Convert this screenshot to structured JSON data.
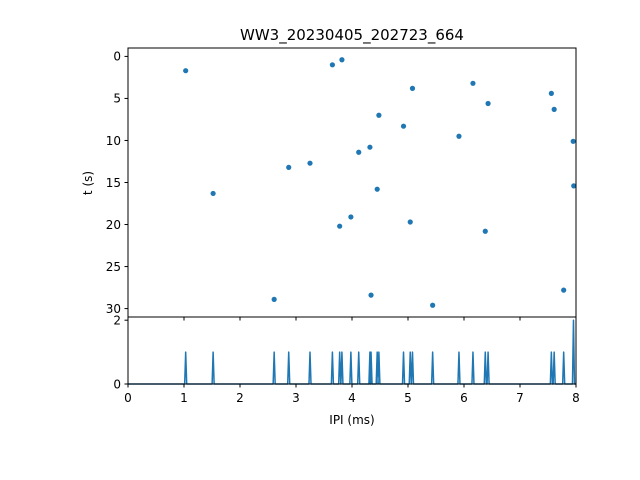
{
  "chart_data": [
    {
      "type": "scatter",
      "title": "WW3_20230405_202723_664",
      "xlabel": "",
      "ylabel": "t (s)",
      "xlim": [
        0,
        8
      ],
      "ylim": [
        31,
        -1
      ],
      "y_inverted": true,
      "yticks": [
        0,
        5,
        10,
        15,
        20,
        25,
        30
      ],
      "grid": false,
      "color": "#1f77b4",
      "points": [
        {
          "x": 1.03,
          "y": 1.7
        },
        {
          "x": 1.52,
          "y": 16.3
        },
        {
          "x": 2.61,
          "y": 28.9
        },
        {
          "x": 2.87,
          "y": 13.2
        },
        {
          "x": 3.25,
          "y": 12.7
        },
        {
          "x": 3.65,
          "y": 1.0
        },
        {
          "x": 3.78,
          "y": 20.2
        },
        {
          "x": 3.82,
          "y": 0.4
        },
        {
          "x": 3.98,
          "y": 19.1
        },
        {
          "x": 4.12,
          "y": 11.4
        },
        {
          "x": 4.32,
          "y": 10.8
        },
        {
          "x": 4.34,
          "y": 28.4
        },
        {
          "x": 4.45,
          "y": 15.8
        },
        {
          "x": 4.48,
          "y": 7.0
        },
        {
          "x": 4.92,
          "y": 8.3
        },
        {
          "x": 5.04,
          "y": 19.7
        },
        {
          "x": 5.08,
          "y": 3.8
        },
        {
          "x": 5.44,
          "y": 29.6
        },
        {
          "x": 5.91,
          "y": 9.5
        },
        {
          "x": 6.16,
          "y": 3.2
        },
        {
          "x": 6.38,
          "y": 20.8
        },
        {
          "x": 6.43,
          "y": 5.6
        },
        {
          "x": 7.56,
          "y": 4.4
        },
        {
          "x": 7.61,
          "y": 6.3
        },
        {
          "x": 7.78,
          "y": 27.8
        },
        {
          "x": 7.95,
          "y": 10.1
        },
        {
          "x": 7.96,
          "y": 15.4
        }
      ]
    },
    {
      "type": "line",
      "title": "",
      "xlabel": "IPI (ms)",
      "ylabel": "",
      "xlim": [
        0,
        8
      ],
      "ylim": [
        0,
        2.1
      ],
      "xticks": [
        0,
        1,
        2,
        3,
        4,
        5,
        6,
        7,
        8
      ],
      "yticks": [
        0,
        2
      ],
      "grid": false,
      "color": "#1f77b4",
      "peaks": [
        {
          "x": 1.03,
          "y": 1
        },
        {
          "x": 1.52,
          "y": 1
        },
        {
          "x": 2.61,
          "y": 1
        },
        {
          "x": 2.87,
          "y": 1
        },
        {
          "x": 3.25,
          "y": 1
        },
        {
          "x": 3.65,
          "y": 1
        },
        {
          "x": 3.78,
          "y": 1
        },
        {
          "x": 3.82,
          "y": 1
        },
        {
          "x": 3.98,
          "y": 1
        },
        {
          "x": 4.12,
          "y": 1
        },
        {
          "x": 4.32,
          "y": 1
        },
        {
          "x": 4.34,
          "y": 1
        },
        {
          "x": 4.45,
          "y": 1
        },
        {
          "x": 4.48,
          "y": 1
        },
        {
          "x": 4.92,
          "y": 1
        },
        {
          "x": 5.04,
          "y": 1
        },
        {
          "x": 5.08,
          "y": 1
        },
        {
          "x": 5.44,
          "y": 1
        },
        {
          "x": 5.91,
          "y": 1
        },
        {
          "x": 6.16,
          "y": 1
        },
        {
          "x": 6.38,
          "y": 1
        },
        {
          "x": 6.43,
          "y": 1
        },
        {
          "x": 7.56,
          "y": 1
        },
        {
          "x": 7.61,
          "y": 1
        },
        {
          "x": 7.78,
          "y": 1
        },
        {
          "x": 7.955,
          "y": 2
        }
      ]
    }
  ]
}
